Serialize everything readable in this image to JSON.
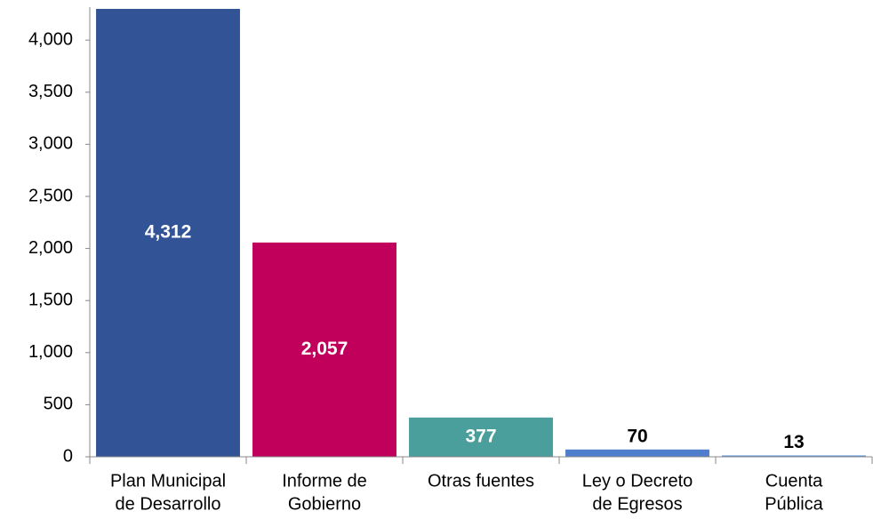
{
  "chart_data": {
    "type": "bar",
    "categories": [
      [
        "Plan Municipal",
        "de Desarrollo"
      ],
      [
        "Informe de",
        "Gobierno"
      ],
      [
        "Otras fuentes"
      ],
      [
        "Ley o Decreto",
        "de Egresos"
      ],
      [
        "Cuenta",
        "Pública"
      ]
    ],
    "values": [
      4312,
      2057,
      377,
      70,
      13
    ],
    "value_labels": [
      "4,312",
      "2,057",
      "377",
      "70",
      "13"
    ],
    "colors": [
      "#325496",
      "#c0005a",
      "#4a9e9b",
      "#4f7fcc",
      "#5b8fd6"
    ],
    "ylim": [
      0,
      4300
    ],
    "yticks": [
      0,
      500,
      {
        "value": 1000,
        "label": "1,000"
      },
      {
        "value": 1500,
        "label": "1,500"
      },
      {
        "value": 2000,
        "label": "2,000"
      },
      {
        "value": 2500,
        "label": "2,500"
      },
      {
        "value": 3000,
        "label": "3,000"
      },
      {
        "value": 3500,
        "label": "3,500"
      },
      {
        "value": 4000,
        "label": "4,000"
      }
    ],
    "grid": false
  }
}
